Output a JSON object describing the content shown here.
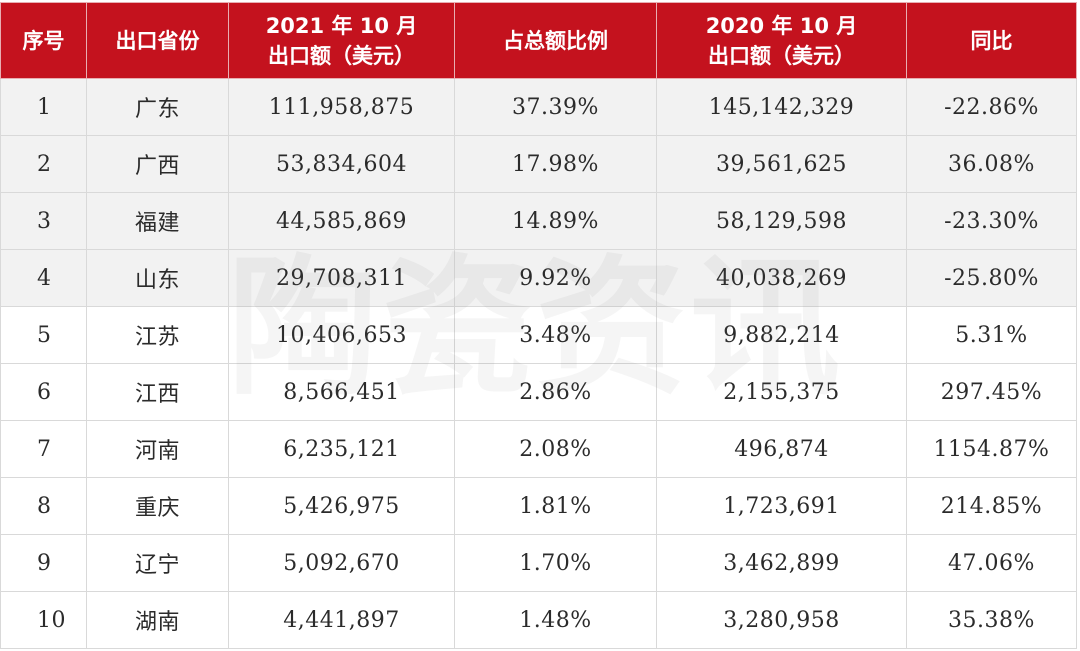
{
  "table": {
    "headers": [
      {
        "line1": "序号",
        "line2": ""
      },
      {
        "line1": "出口省份",
        "line2": ""
      },
      {
        "line1": "2021 年 10 月",
        "line2": "出口额（美元）"
      },
      {
        "line1": "占总额比例",
        "line2": ""
      },
      {
        "line1": "2020 年 10 月",
        "line2": "出口额（美元）"
      },
      {
        "line1": "同比",
        "line2": ""
      }
    ],
    "rows": [
      [
        "1",
        "广东",
        "111,958,875",
        "37.39%",
        "145,142,329",
        "-22.86%"
      ],
      [
        "2",
        "广西",
        "53,834,604",
        "17.98%",
        "39,561,625",
        "36.08%"
      ],
      [
        "3",
        "福建",
        "44,585,869",
        "14.89%",
        "58,129,598",
        "-23.30%"
      ],
      [
        "4",
        "山东",
        "29,708,311",
        "9.92%",
        "40,038,269",
        "-25.80%"
      ],
      [
        "5",
        "江苏",
        "10,406,653",
        "3.48%",
        "9,882,214",
        "5.31%"
      ],
      [
        "6",
        "江西",
        "8,566,451",
        "2.86%",
        "2,155,375",
        "297.45%"
      ],
      [
        "7",
        "河南",
        "6,235,121",
        "2.08%",
        "496,874",
        "1154.87%"
      ],
      [
        "8",
        "重庆",
        "5,426,975",
        "1.81%",
        "1,723,691",
        "214.85%"
      ],
      [
        "9",
        "辽宁",
        "5,092,670",
        "1.70%",
        "3,462,899",
        "47.06%"
      ],
      [
        "10",
        "湖南",
        "4,441,897",
        "1.48%",
        "3,280,958",
        "35.38%"
      ]
    ]
  },
  "watermark": "陶瓷资讯",
  "colors": {
    "header_bg": "#c4121e",
    "header_text": "#ffffff",
    "row_shade": "#f2f2f2"
  }
}
